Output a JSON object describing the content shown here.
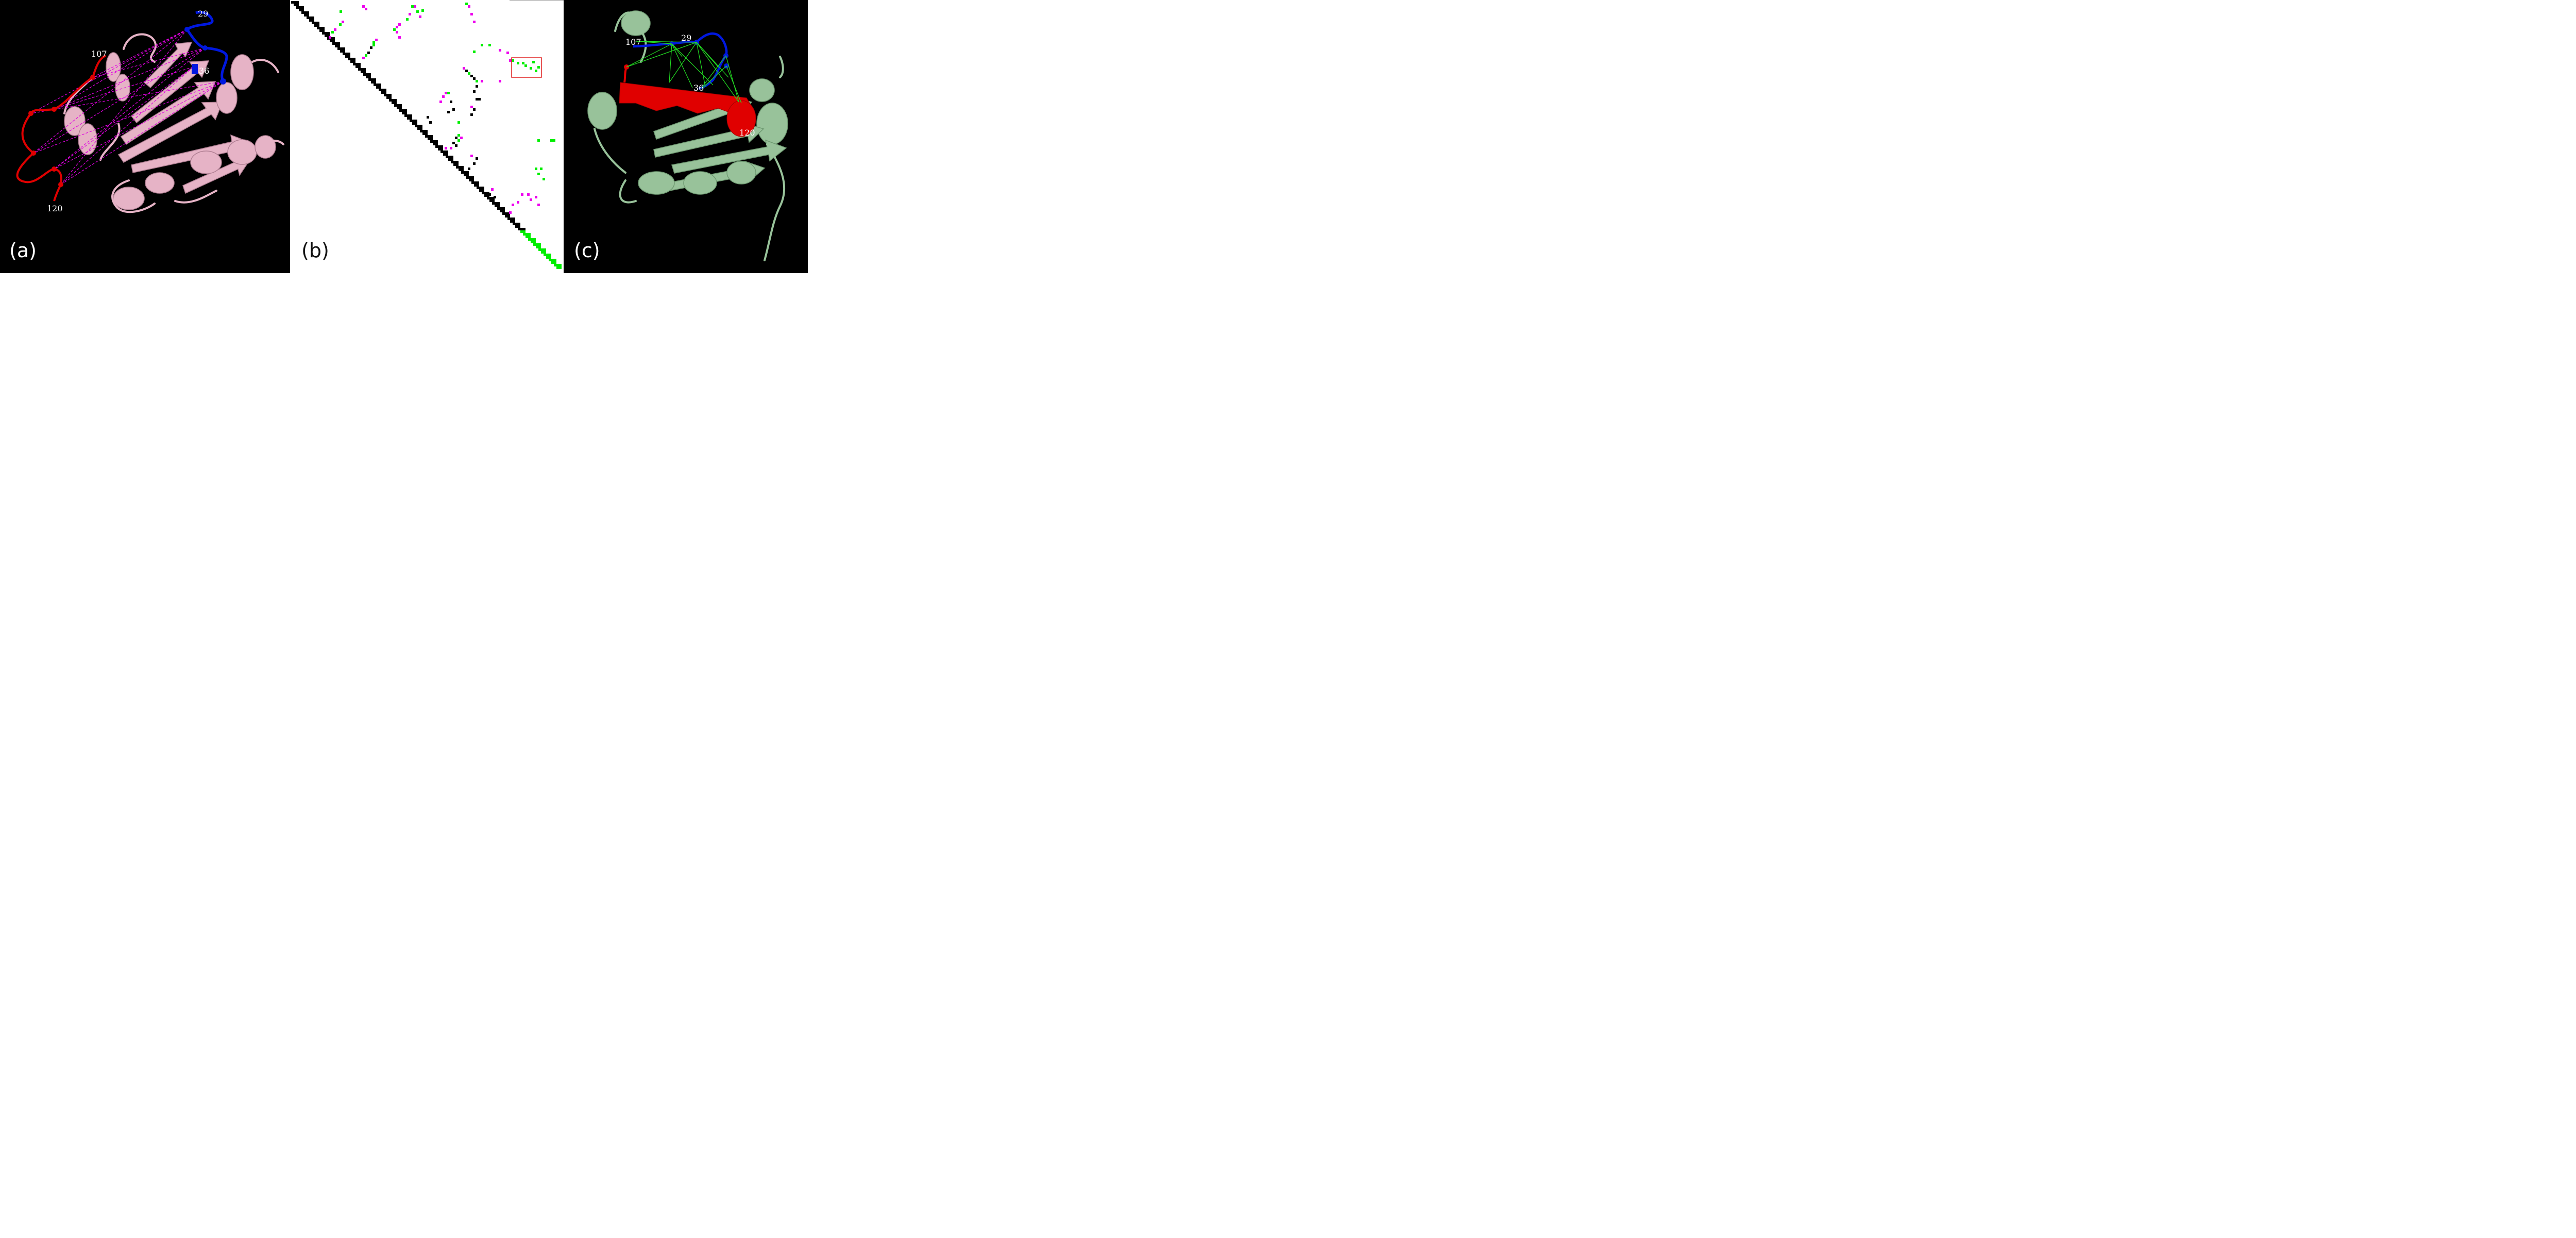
{
  "panels": {
    "a": {
      "letter": "(a)",
      "labels": {
        "r29": "29",
        "r36": "36",
        "r107": "107",
        "r120": "120"
      },
      "colors": {
        "background": "#000000",
        "protein": "#e6b3c6",
        "loop_a": "#e00000",
        "loop_b": "#0018e0",
        "contacts": "#e000e0"
      }
    },
    "b": {
      "letter": "(b)",
      "colors": {
        "background": "#ffffff",
        "native": "#000000",
        "predicted_only": "#00ee00",
        "native_only": "#ee00ee",
        "highlight_box": "#e02020"
      }
    },
    "c": {
      "letter": "(c)",
      "labels": {
        "r29": "29",
        "r36": "36",
        "r107": "107",
        "r120": "120"
      },
      "colors": {
        "background": "#000000",
        "protein": "#98c29a",
        "helix": "#e00000",
        "loop_b": "#0018e0",
        "contacts": "#22dd22"
      }
    }
  }
}
